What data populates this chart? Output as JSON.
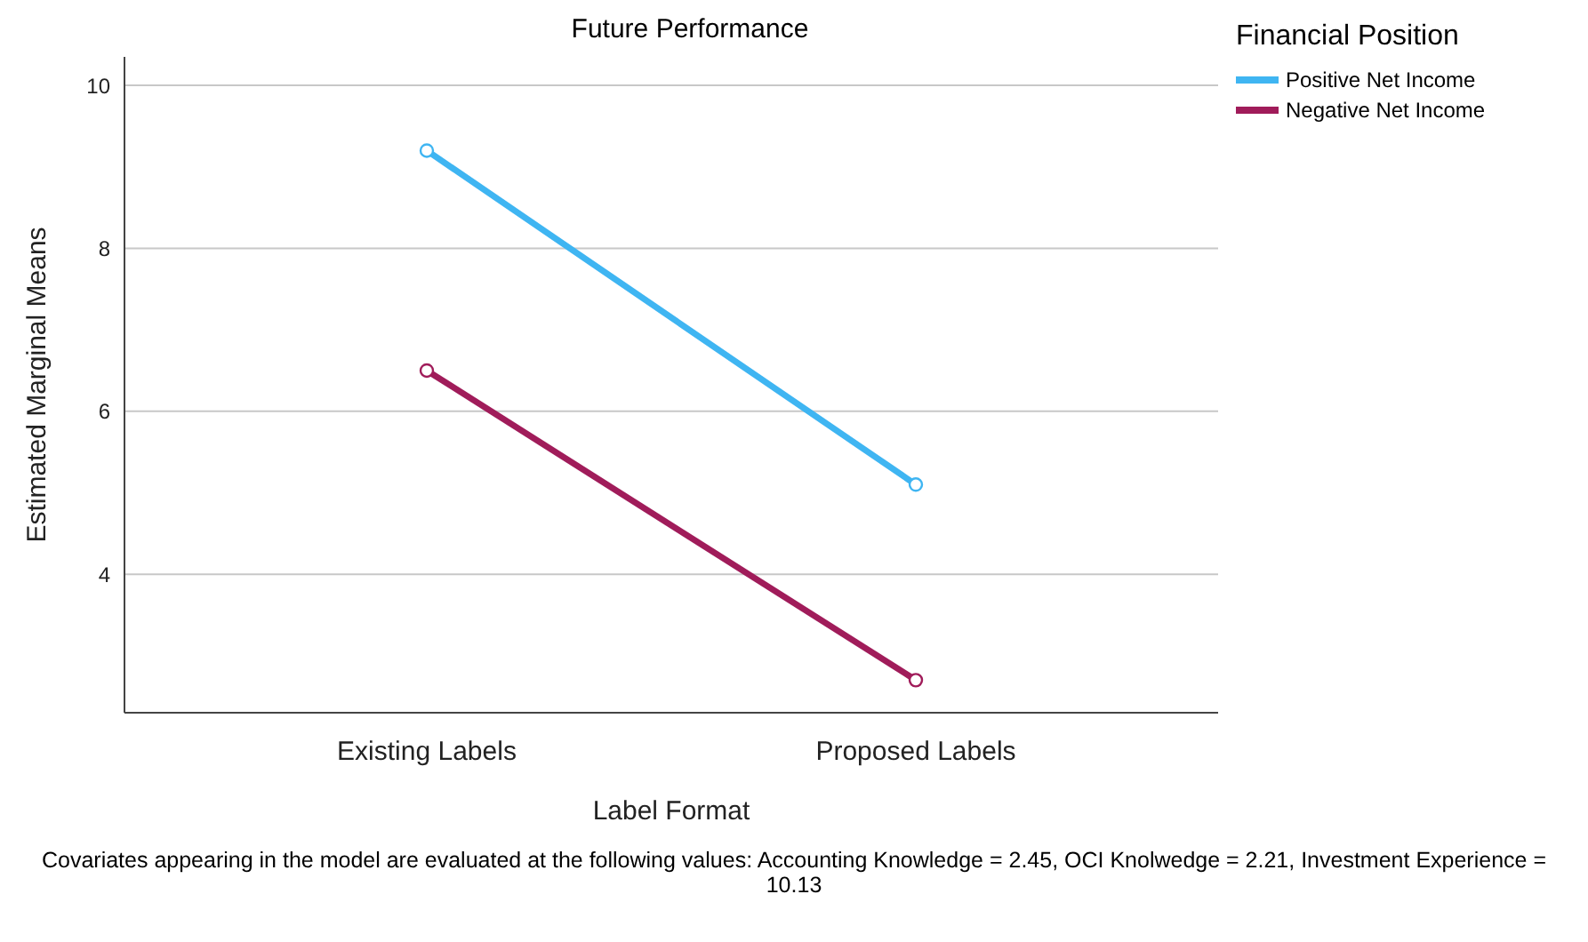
{
  "chart_data": {
    "type": "line",
    "title": "Future Performance",
    "xlabel": "Label Format",
    "ylabel": "Estimated Marginal Means",
    "legend_title": "Financial Position",
    "categories": [
      "Existing Labels",
      "Proposed Labels"
    ],
    "series": [
      {
        "name": "Positive Net Income",
        "color": "#3fb5f2",
        "values": [
          9.2,
          5.1
        ]
      },
      {
        "name": "Negative Net Income",
        "color": "#a01c5a",
        "values": [
          6.5,
          2.7
        ]
      }
    ],
    "ylim": [
      2.3,
      10.35
    ],
    "yticks": [
      4,
      6,
      8,
      10
    ],
    "grid": "y",
    "legend": "top right",
    "marker": "circle",
    "line_style": "solid",
    "annotations": [
      "Covariates appearing in the model are evaluated at the following values: Accounting Knowledge = 2.45, OCI Knolwedge = 2.21, Investment Experience = 10.13"
    ]
  }
}
